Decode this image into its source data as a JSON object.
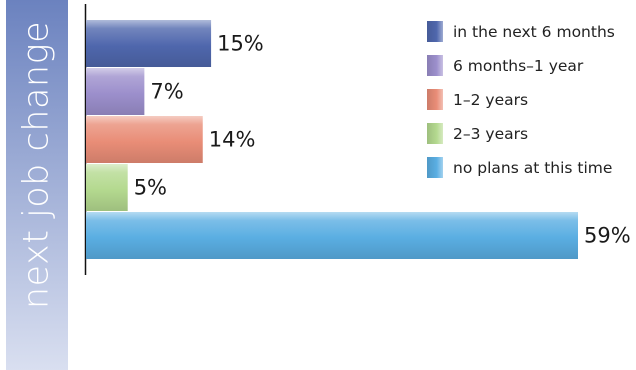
{
  "sidebar": {
    "label": "next job change",
    "colors": {
      "top": "#6b82bf",
      "bottom": "#d9dff0"
    }
  },
  "chart_data": {
    "type": "bar",
    "orientation": "horizontal",
    "title": "",
    "xlabel": "",
    "ylabel": "next job change",
    "xlim": [
      0,
      60
    ],
    "grid": false,
    "legend": "top-right",
    "categories": [
      "in the next 6 months",
      "6 months–1 year",
      "1–2 years",
      "2–3 years",
      "no plans at this time"
    ],
    "values": [
      15,
      7,
      14,
      5,
      59
    ],
    "labels": [
      "15%",
      "7%",
      "14%",
      "5%",
      "59%"
    ],
    "colors": [
      "#4f67ad",
      "#9c8fcc",
      "#e98d77",
      "#b4d98f",
      "#5aaee2"
    ]
  }
}
